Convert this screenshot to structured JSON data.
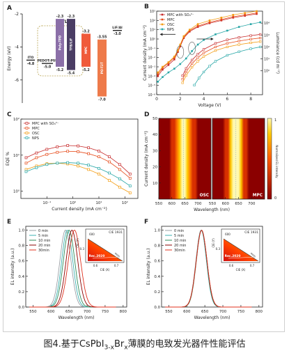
{
  "caption": {
    "prefix": "图4.基于CsPbI",
    "sub1": "3-x",
    "mid": "Br",
    "sub2": "x",
    "suffix": "薄膜的电致发光器件性能评估"
  },
  "colors": {
    "mpc_so4": "#c62828",
    "mpc": "#e64a19",
    "osc": "#f39c12",
    "nps": "#26a6a6",
    "t0": "#9aa0a6",
    "t5": "#3bb2b2",
    "t10": "#2e8b57",
    "t20": "#8b0000",
    "t30": "#e0301e"
  },
  "chart_data": [
    {
      "panel": "A",
      "type": "energy-level-diagram",
      "ylabel": "Energy (eV)",
      "yticks": [
        "-2",
        "-4",
        "-6"
      ],
      "ylim": [
        -7.4,
        -2.0
      ],
      "group_label": "HTLs",
      "levels": [
        {
          "name": "ITO",
          "top": -4.8,
          "labels": [
            "-4.8"
          ],
          "color": "#222222"
        },
        {
          "name": "PEDOT:PSS",
          "top": -5.0,
          "labels": [
            "-5.0"
          ],
          "color": "#222222"
        },
        {
          "name": "Poly-TPD",
          "top": -2.3,
          "bottom": -5.2,
          "labels": [
            "-2.3",
            "-5.2"
          ],
          "color": "#8b6fa8"
        },
        {
          "name": "TFB/LiF",
          "top": -2.3,
          "bottom": -5.4,
          "labels": [
            "-2.3",
            "-5.4"
          ],
          "color": "#4a3d64"
        },
        {
          "name": "MPC",
          "top": -3.2,
          "bottom": -5.2,
          "labels": [
            "-3.2",
            "-5.2"
          ],
          "color": "#f05a3a"
        },
        {
          "name": "PO-T2T",
          "top": -3.55,
          "bottom": -7.0,
          "labels": [
            "-3.55",
            "-7.0"
          ],
          "color": "#ee7a4a"
        },
        {
          "name": "LiF/Al",
          "top": -3.0,
          "labels": [
            "-3.0"
          ],
          "color": "#222222"
        }
      ]
    },
    {
      "panel": "B",
      "type": "line",
      "xlabel": "Voltage (V)",
      "ylabel": "Current density (mA cm⁻²)",
      "y2label": "Luminance (cd m⁻²)",
      "xlim": [
        0,
        9
      ],
      "xticks": [
        "0",
        "2",
        "4",
        "6",
        "8"
      ],
      "ylim_log10": [
        -6,
        3
      ],
      "yticks": [
        "10⁻⁶",
        "10⁻⁵",
        "10⁻⁴",
        "10⁻³",
        "10⁻²",
        "10⁻¹",
        "10⁰",
        "10¹",
        "10²",
        "10³"
      ],
      "y2lim_log10": [
        -2,
        5
      ],
      "y2ticks": [
        "10⁰",
        "10¹",
        "10²",
        "10³",
        "10⁴"
      ],
      "legend": {
        "position": "top-left",
        "entries": [
          "MPC with SO₄²⁻",
          "MPC",
          "OSC",
          "NPS"
        ]
      },
      "series": [
        {
          "name": "MPC with SO₄²⁻",
          "color": "mpc_so4",
          "kind": "current",
          "x": [
            0.1,
            0.5,
            1.0,
            1.5,
            1.8,
            2.0,
            2.3,
            2.8,
            3.5,
            4.5,
            5.5,
            6.5,
            7.5,
            8.5
          ],
          "y_log10": [
            -4.0,
            -3.3,
            -2.8,
            -2.2,
            -1.4,
            -0.8,
            0.1,
            0.8,
            1.3,
            1.7,
            2.0,
            2.3,
            2.5,
            2.7
          ]
        },
        {
          "name": "MPC",
          "color": "mpc",
          "kind": "current",
          "x": [
            0.1,
            0.5,
            1.0,
            1.5,
            1.8,
            2.0,
            2.3,
            2.8,
            3.5,
            4.5,
            5.5,
            6.5,
            7.5,
            8.5
          ],
          "y_log10": [
            -3.8,
            -3.1,
            -2.6,
            -2.0,
            -1.3,
            -0.7,
            0.2,
            0.9,
            1.4,
            1.8,
            2.1,
            2.4,
            2.6,
            2.8
          ]
        },
        {
          "name": "OSC",
          "color": "osc",
          "kind": "current",
          "x": [
            0.1,
            0.5,
            1.0,
            1.5,
            1.8,
            2.0,
            2.3,
            2.8,
            3.5,
            4.5,
            5.5,
            6.5,
            7.5,
            8.5
          ],
          "y_log10": [
            -3.6,
            -3.0,
            -2.5,
            -1.9,
            -1.2,
            -0.6,
            0.3,
            1.0,
            1.6,
            2.0,
            2.3,
            2.6,
            2.8,
            3.0
          ]
        },
        {
          "name": "NPS",
          "color": "nps",
          "kind": "current",
          "x": [
            0.1,
            0.5,
            1.0,
            1.5,
            2.0,
            2.5,
            3.0,
            3.5,
            4.0,
            5.0,
            6.0,
            7.0,
            8.0,
            8.8
          ],
          "y_log10": [
            -4.6,
            -4.1,
            -3.6,
            -3.2,
            -2.7,
            -2.1,
            -1.3,
            -0.6,
            -0.1,
            0.5,
            0.9,
            1.3,
            1.6,
            1.8
          ]
        },
        {
          "name": "MPC with SO₄²⁻",
          "color": "mpc_so4",
          "kind": "luminance",
          "x": [
            2.2,
            2.5,
            3.0,
            3.5,
            4.0,
            5.0,
            6.0,
            7.0,
            8.0,
            8.8
          ],
          "y2_log10": [
            -0.4,
            0.2,
            0.9,
            1.4,
            1.8,
            2.3,
            2.6,
            2.8,
            2.95,
            3.05
          ]
        },
        {
          "name": "MPC",
          "color": "mpc",
          "kind": "luminance",
          "x": [
            2.2,
            2.5,
            3.0,
            3.5,
            4.0,
            5.0,
            6.0,
            7.0,
            8.0,
            8.8
          ],
          "y2_log10": [
            -0.7,
            -0.1,
            0.6,
            1.1,
            1.5,
            2.0,
            2.3,
            2.5,
            2.65,
            2.75
          ]
        },
        {
          "name": "OSC",
          "color": "osc",
          "kind": "luminance",
          "x": [
            2.2,
            2.5,
            3.0,
            3.5,
            4.0,
            5.0,
            6.0,
            7.0,
            8.0,
            8.8
          ],
          "y2_log10": [
            -1.0,
            -0.4,
            0.3,
            0.8,
            1.2,
            1.7,
            2.0,
            2.2,
            2.35,
            2.45
          ]
        },
        {
          "name": "NPS",
          "color": "nps",
          "kind": "luminance",
          "x": [
            3.2,
            3.6,
            4.0,
            4.5,
            5.0,
            6.0,
            7.0,
            8.0,
            8.8
          ],
          "y2_log10": [
            -1.2,
            -0.6,
            -0.1,
            0.4,
            0.8,
            1.3,
            1.6,
            1.85,
            2.0
          ]
        }
      ]
    },
    {
      "panel": "C",
      "type": "line",
      "xlabel": "Current density (mA cm⁻²)",
      "ylabel": "EQE %",
      "xlim_log10": [
        -2,
        2.5
      ],
      "xticks": [
        "10⁻¹",
        "10⁰",
        "10¹",
        "10²"
      ],
      "ylim_log10": [
        -0.2,
        2.0
      ],
      "yticks": [
        "10⁰",
        "10¹",
        "10²"
      ],
      "legend": {
        "position": "top-left",
        "entries": [
          "MPC with SO₄²⁻",
          "MPC",
          "OSC",
          "NPS"
        ]
      },
      "series": [
        {
          "name": "MPC with SO₄²⁻",
          "color": "mpc_so4",
          "x_log10": [
            -1.8,
            -1.4,
            -1.0,
            -0.6,
            -0.2,
            0.2,
            0.6,
            1.0,
            1.4,
            1.8,
            2.2
          ],
          "y": [
            8.5,
            11.5,
            14.5,
            17.0,
            18.5,
            18.0,
            16.0,
            13.0,
            9.0,
            5.5,
            3.0
          ]
        },
        {
          "name": "MPC",
          "color": "mpc",
          "x_log10": [
            -1.8,
            -1.4,
            -1.0,
            -0.6,
            -0.2,
            0.2,
            0.6,
            1.0,
            1.4,
            1.8,
            2.2
          ],
          "y": [
            6.0,
            8.5,
            10.5,
            12.0,
            12.8,
            12.5,
            11.0,
            9.0,
            6.5,
            4.0,
            2.3
          ]
        },
        {
          "name": "OSC",
          "color": "osc",
          "x_log10": [
            -1.8,
            -1.4,
            -1.0,
            -0.6,
            -0.2,
            0.2,
            0.6,
            1.0,
            1.4,
            1.8,
            2.2
          ],
          "y": [
            4.0,
            5.0,
            5.8,
            6.0,
            5.7,
            5.0,
            4.0,
            3.0,
            2.0,
            1.3,
            0.9
          ]
        },
        {
          "name": "NPS",
          "color": "nps",
          "x_log10": [
            -1.8,
            -1.4,
            -1.0,
            -0.6,
            -0.2,
            0.2,
            0.6,
            1.0,
            1.4,
            1.8,
            2.2
          ],
          "y": [
            3.5,
            4.5,
            5.5,
            6.0,
            6.2,
            6.0,
            5.3,
            4.3,
            3.2,
            2.2,
            1.4
          ]
        }
      ]
    },
    {
      "panel": "D",
      "type": "heatmap",
      "ylabel": "Current density (mA cm⁻²)",
      "xlabel": "Wavelength (nm)",
      "colorbar_label": "Normalized EL intensity",
      "colorbar_ticks": [
        "0",
        "1"
      ],
      "maps": [
        {
          "label": "OSC",
          "xlim": [
            550,
            750
          ],
          "xticks": [
            "550",
            "600",
            "650",
            "700"
          ],
          "ylim": [
            0,
            50
          ],
          "yticks": [
            "10",
            "20",
            "30",
            "40",
            "50"
          ],
          "peak_nm": 645,
          "fwhm_nm": 34
        },
        {
          "label": "MPC",
          "xlim": [
            550,
            750
          ],
          "xticks": [
            "550",
            "600",
            "650",
            "700"
          ],
          "ylim": [
            0,
            50
          ],
          "peak_nm": 640,
          "fwhm_nm": 30
        }
      ]
    },
    {
      "panel": "E",
      "type": "line",
      "xlabel": "Wavelength (nm)",
      "ylabel": "EL intensity (a.u.)",
      "xlim": [
        530,
        810
      ],
      "xticks": [
        "550",
        "600",
        "650",
        "700",
        "750",
        "800"
      ],
      "ylim": [
        0,
        1.05
      ],
      "yticks": [
        "0.0",
        "0.2",
        "0.4",
        "0.6",
        "0.8",
        "1.0"
      ],
      "legend": {
        "position": "top-left",
        "entries": [
          "0 min",
          "5 min",
          "10 min",
          "20 min",
          "30min"
        ]
      },
      "series": [
        {
          "name": "0 min",
          "color": "t0",
          "peak": 640,
          "fwhm": 36
        },
        {
          "name": "5 min",
          "color": "t5",
          "peak": 645,
          "fwhm": 36
        },
        {
          "name": "10 min",
          "color": "t10",
          "peak": 650,
          "fwhm": 37
        },
        {
          "name": "20 min",
          "color": "t20",
          "peak": 658,
          "fwhm": 38
        },
        {
          "name": "30min",
          "color": "t30",
          "peak": 665,
          "fwhm": 40
        }
      ],
      "inset": {
        "label": "CIE 1931",
        "xlabel": "CIE (X)",
        "ylabel": "CIE (Y)",
        "xticks": [
          "0.6",
          "0.7"
        ],
        "yticks": [
          "0.3"
        ],
        "top_tick": "600",
        "annotation": "Rec.2020"
      }
    },
    {
      "panel": "F",
      "type": "line",
      "xlabel": "Wavelength (nm)",
      "ylabel": "EL intensity (a.u.)",
      "xlim": [
        530,
        810
      ],
      "xticks": [
        "550",
        "600",
        "650",
        "700",
        "750",
        "800"
      ],
      "ylim": [
        0,
        1.05
      ],
      "yticks": [
        "0.0",
        "0.2",
        "0.4",
        "0.6",
        "0.8",
        "1.0"
      ],
      "legend": {
        "position": "top-left",
        "entries": [
          "0 min",
          "5 min",
          "10 min",
          "20 min",
          "30min"
        ]
      },
      "series": [
        {
          "name": "0 min",
          "color": "t0",
          "peak": 640,
          "fwhm": 34
        },
        {
          "name": "5 min",
          "color": "t5",
          "peak": 640,
          "fwhm": 34
        },
        {
          "name": "10 min",
          "color": "t10",
          "peak": 641,
          "fwhm": 34
        },
        {
          "name": "20 min",
          "color": "t20",
          "peak": 641,
          "fwhm": 35
        },
        {
          "name": "30min",
          "color": "t30",
          "peak": 641,
          "fwhm": 35
        }
      ],
      "inset": {
        "label": "CIE 1931",
        "xlabel": "CIE (X)",
        "ylabel": "CIE (Y)",
        "xticks": [
          "0.6",
          "0.7"
        ],
        "yticks": [
          "0.3"
        ],
        "top_tick": "600",
        "annotation": "Rec.2020"
      }
    }
  ]
}
